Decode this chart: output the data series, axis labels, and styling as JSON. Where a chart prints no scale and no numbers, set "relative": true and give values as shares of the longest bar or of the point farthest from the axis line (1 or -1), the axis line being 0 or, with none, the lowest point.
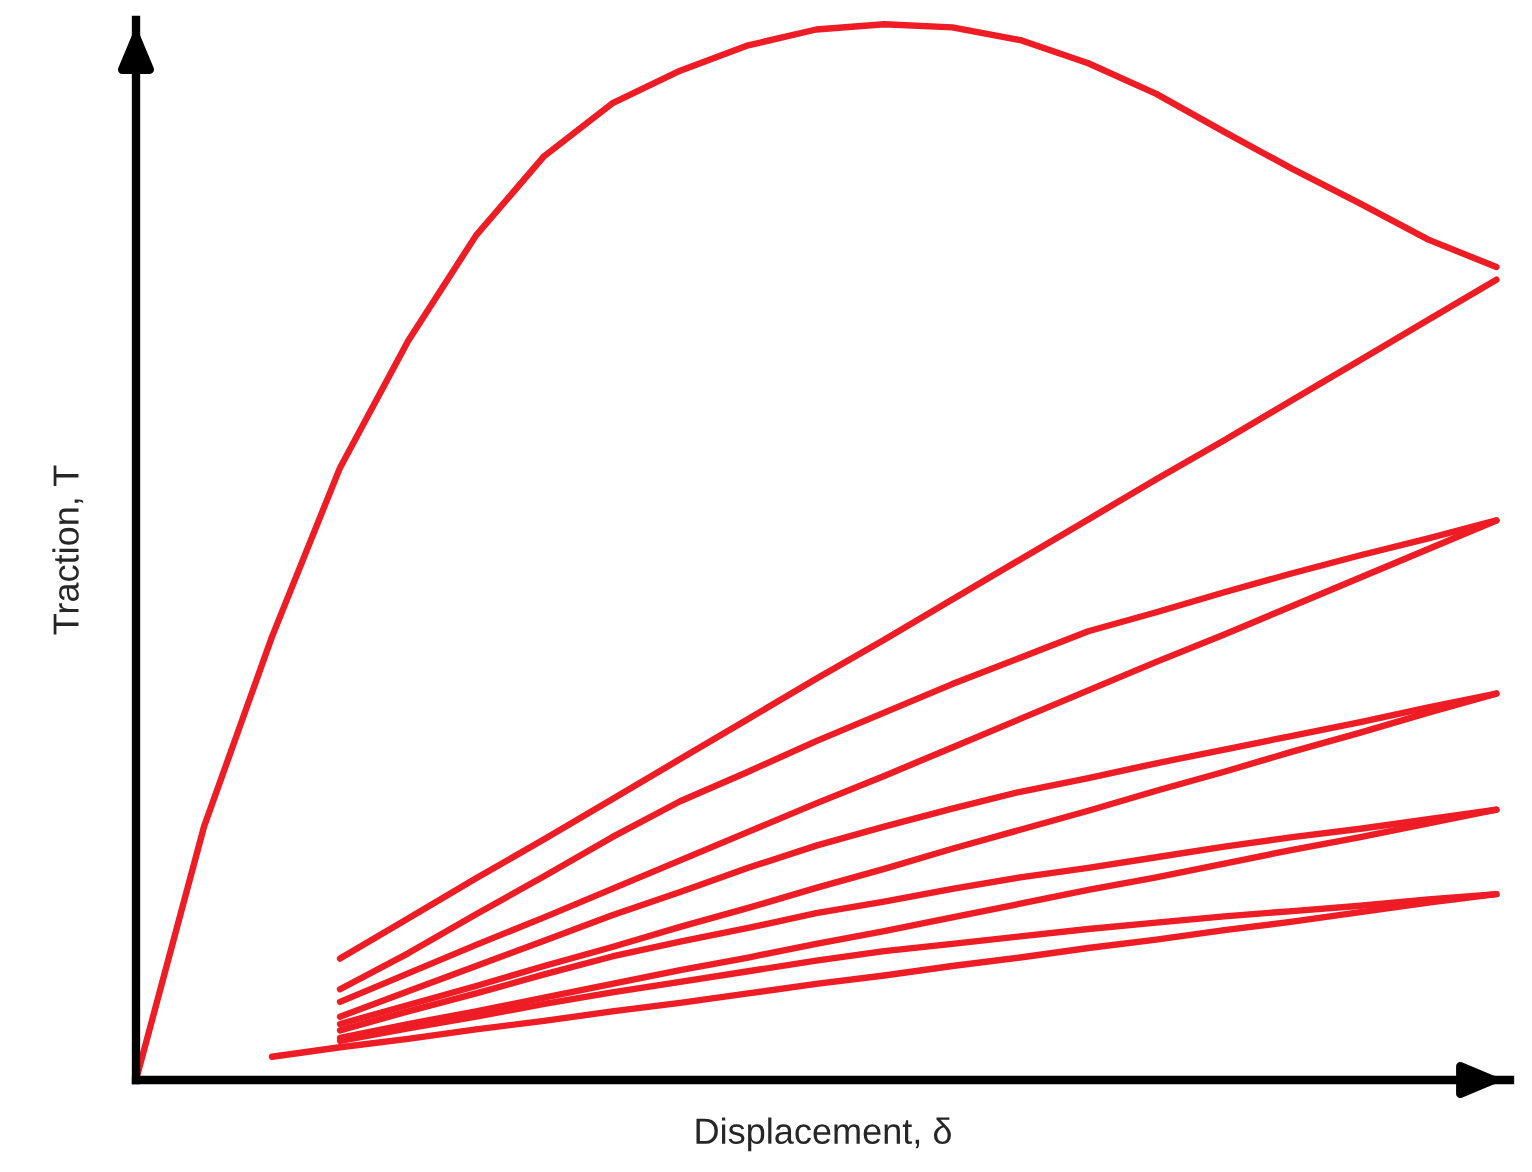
{
  "chart_data": {
    "type": "line",
    "relative": true,
    "xlabel": "Displacement, δ",
    "ylabel": "Traction, T",
    "marker": "none",
    "line_style": "solid",
    "categories": [
      null,
      null,
      null,
      null,
      null,
      null,
      null,
      null,
      null,
      null,
      null,
      null,
      null,
      null,
      null,
      null,
      null,
      null,
      null,
      null,
      null
    ],
    "series": [
      {
        "color": "#ee1c24",
        "values": [
          0,
          0.24,
          0.42,
          0.58,
          0.7,
          0.8,
          0.875,
          0.925,
          0.956,
          0.98,
          0.995,
          1.0,
          0.997,
          0.985,
          0.963,
          0.934,
          0.898,
          0.863,
          0.83,
          0.796,
          0.77
        ]
      },
      {
        "color": "#ee1c24",
        "values": [
          null,
          null,
          null,
          0.115,
          0.153,
          0.191,
          0.228,
          0.266,
          0.304,
          0.342,
          0.38,
          0.417,
          0.455,
          0.493,
          0.531,
          0.569,
          0.606,
          0.644,
          0.682,
          0.72,
          0.758
        ]
      },
      {
        "color": "#ee1c24",
        "values": [
          null,
          null,
          null,
          0.086,
          0.12,
          0.157,
          0.193,
          0.23,
          0.264,
          0.292,
          0.321,
          0.348,
          0.375,
          0.4,
          0.425,
          0.443,
          0.462,
          0.48,
          0.497,
          0.513,
          0.53
        ]
      },
      {
        "color": "#ee1c24",
        "values": [
          null,
          null,
          null,
          0.074,
          0.101,
          0.128,
          0.154,
          0.181,
          0.208,
          0.235,
          0.262,
          0.288,
          0.315,
          0.342,
          0.369,
          0.396,
          0.422,
          0.449,
          0.476,
          0.503,
          0.53
        ]
      },
      {
        "color": "#ee1c24",
        "values": [
          null,
          null,
          null,
          0.06,
          0.084,
          0.108,
          0.132,
          0.156,
          0.178,
          0.201,
          0.222,
          0.24,
          0.257,
          0.273,
          0.286,
          0.3,
          0.313,
          0.326,
          0.339,
          0.353,
          0.366
        ]
      },
      {
        "color": "#ee1c24",
        "values": [
          null,
          null,
          null,
          0.053,
          0.071,
          0.089,
          0.108,
          0.126,
          0.145,
          0.163,
          0.182,
          0.2,
          0.219,
          0.237,
          0.255,
          0.274,
          0.292,
          0.311,
          0.329,
          0.348,
          0.366
        ]
      },
      {
        "color": "#ee1c24",
        "values": [
          null,
          null,
          null,
          0.047,
          0.065,
          0.082,
          0.1,
          0.117,
          0.131,
          0.144,
          0.158,
          0.169,
          0.181,
          0.192,
          0.201,
          0.211,
          0.221,
          0.23,
          0.238,
          0.247,
          0.256
        ]
      },
      {
        "color": "#ee1c24",
        "values": [
          null,
          null,
          null,
          0.04,
          0.053,
          0.065,
          0.078,
          0.091,
          0.104,
          0.116,
          0.129,
          0.141,
          0.154,
          0.167,
          0.18,
          0.192,
          0.205,
          0.218,
          0.23,
          0.243,
          0.256
        ]
      },
      {
        "color": "#ee1c24",
        "values": [
          null,
          null,
          null,
          0.037,
          0.049,
          0.06,
          0.072,
          0.083,
          0.093,
          0.103,
          0.113,
          0.122,
          0.129,
          0.136,
          0.143,
          0.149,
          0.155,
          0.16,
          0.165,
          0.171,
          0.176
        ]
      },
      {
        "color": "#ee1c24",
        "values": [
          null,
          null,
          0.022,
          0.031,
          0.039,
          0.048,
          0.056,
          0.065,
          0.073,
          0.082,
          0.091,
          0.099,
          0.108,
          0.116,
          0.125,
          0.133,
          0.142,
          0.15,
          0.159,
          0.168,
          0.176
        ]
      }
    ]
  }
}
